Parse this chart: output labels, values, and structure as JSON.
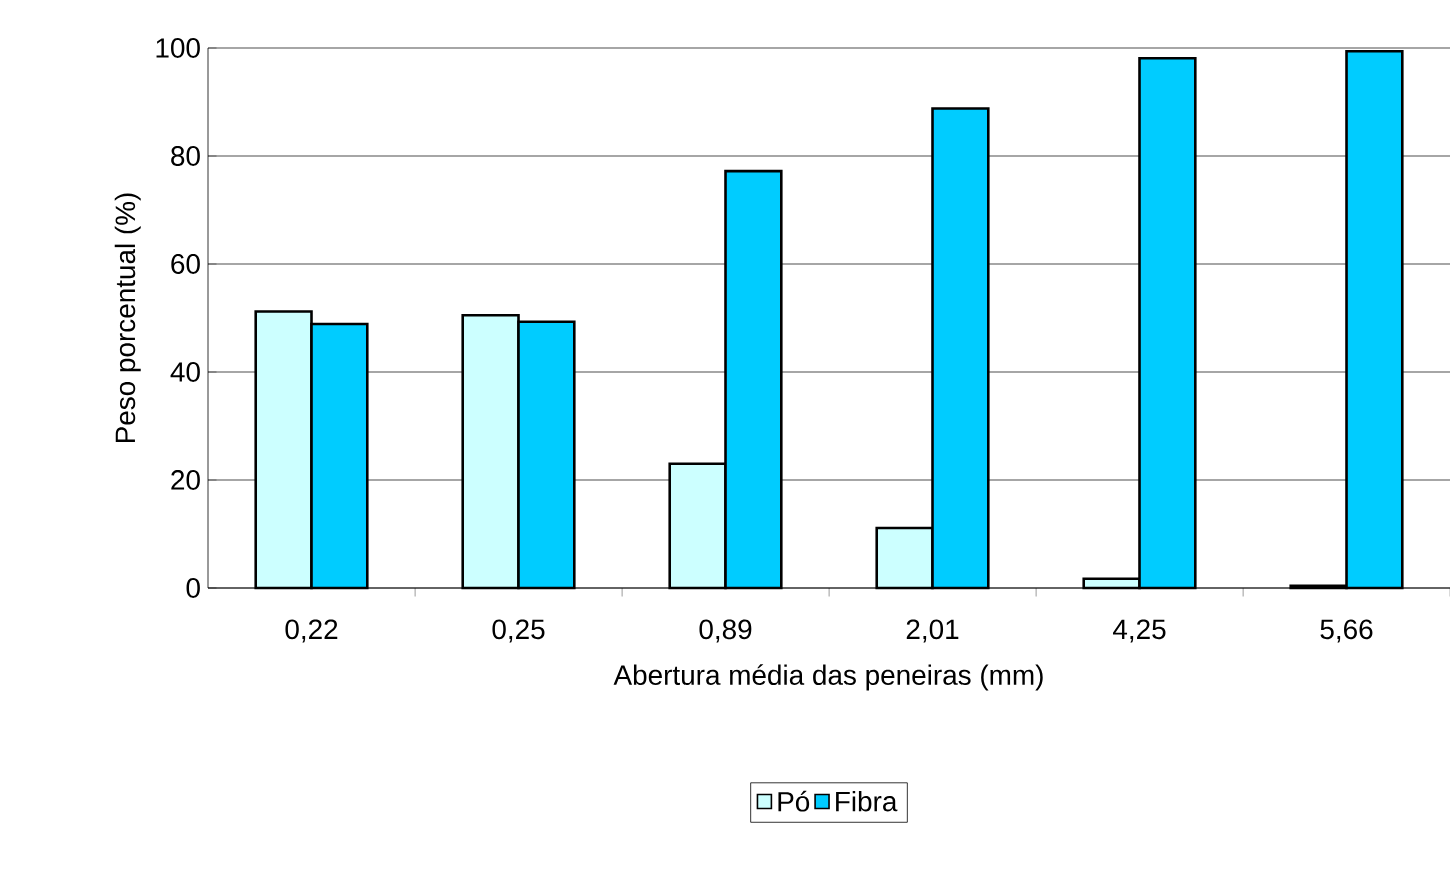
{
  "chart_data": {
    "type": "bar",
    "xlabel": "Abertura média das peneiras (mm)",
    "ylabel": "Peso porcentual (%)",
    "categories": [
      "0,22",
      "0,25",
      "0,89",
      "2,01",
      "4,25",
      "5,66"
    ],
    "series": [
      {
        "name": "Pó",
        "color": "#ccffff",
        "values": [
          51.2,
          50.5,
          23.0,
          11.1,
          1.7,
          0.4
        ]
      },
      {
        "name": "Fibra",
        "color": "#00ccff",
        "values": [
          48.9,
          49.3,
          77.2,
          88.8,
          98.1,
          99.4
        ]
      }
    ],
    "ylim": [
      0,
      100
    ],
    "yticks": [
      0,
      20,
      40,
      60,
      80,
      100
    ],
    "grid": "y",
    "legend": "bottom"
  }
}
